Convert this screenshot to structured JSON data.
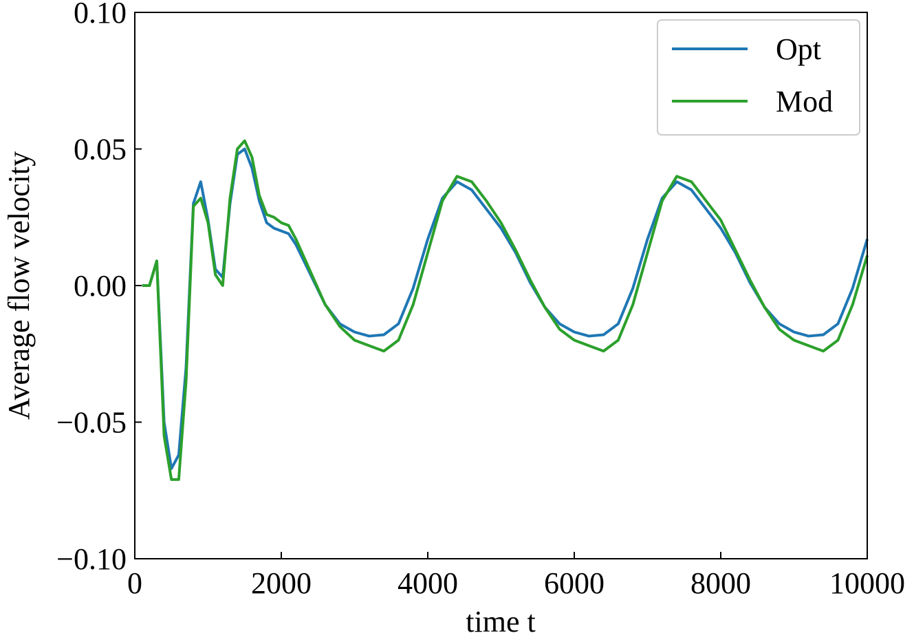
{
  "chart_data": {
    "type": "line",
    "xlabel": "time t",
    "ylabel": "Average flow velocity",
    "x": [
      100,
      200,
      300,
      400,
      500,
      600,
      700,
      800,
      900,
      1000,
      1100,
      1200,
      1300,
      1400,
      1500,
      1600,
      1700,
      1800,
      1900,
      2000,
      2100,
      2200,
      2400,
      2600,
      2800,
      3000,
      3200,
      3400,
      3600,
      3800,
      4000,
      4200,
      4400,
      4600,
      4800,
      5000,
      5200,
      5400,
      5600,
      5800,
      6000,
      6200,
      6400,
      6600,
      6800,
      7000,
      7200,
      7400,
      7600,
      7800,
      8000,
      8200,
      8400,
      8600,
      8800,
      9000,
      9200,
      9400,
      9600,
      9800,
      10000
    ],
    "series": [
      {
        "name": "Opt",
        "color": "#1f77b4",
        "values": [
          0,
          0,
          0.009,
          -0.05,
          -0.067,
          -0.062,
          -0.03,
          0.03,
          0.038,
          0.024,
          0.006,
          0.003,
          0.03,
          0.048,
          0.05,
          0.043,
          0.031,
          0.023,
          0.021,
          0.02,
          0.019,
          0.015,
          0.004,
          -0.007,
          -0.014,
          -0.017,
          -0.0185,
          -0.018,
          -0.014,
          -0.001,
          0.017,
          0.032,
          0.038,
          0.035,
          0.028,
          0.021,
          0.012,
          0.001,
          -0.008,
          -0.014,
          -0.017,
          -0.0185,
          -0.018,
          -0.014,
          -0.001,
          0.017,
          0.032,
          0.038,
          0.035,
          0.028,
          0.021,
          0.012,
          0.001,
          -0.008,
          -0.014,
          -0.017,
          -0.0185,
          -0.018,
          -0.014,
          -0.001,
          0.017
        ]
      },
      {
        "name": "Mod",
        "color": "#2ca02c",
        "values": [
          0,
          0,
          0.009,
          -0.055,
          -0.071,
          -0.071,
          -0.035,
          0.029,
          0.032,
          0.023,
          0.004,
          0,
          0.032,
          0.05,
          0.053,
          0.047,
          0.033,
          0.026,
          0.025,
          0.023,
          0.022,
          0.017,
          0.005,
          -0.007,
          -0.015,
          -0.02,
          -0.022,
          -0.024,
          -0.02,
          -0.007,
          0.012,
          0.031,
          0.04,
          0.038,
          0.031,
          0.023,
          0.013,
          0.002,
          -0.008,
          -0.016,
          -0.02,
          -0.022,
          -0.024,
          -0.02,
          -0.007,
          0.012,
          0.031,
          0.04,
          0.038,
          0.031,
          0.024,
          0.013,
          0.002,
          -0.008,
          -0.016,
          -0.02,
          -0.022,
          -0.024,
          -0.02,
          -0.007,
          0.011
        ]
      }
    ],
    "xlim": [
      0,
      10000
    ],
    "xticks": [
      0,
      2000,
      4000,
      6000,
      8000,
      10000
    ],
    "ylim": [
      -0.1,
      0.1
    ],
    "yticks": [
      {
        "value": -0.1,
        "label": "−0.10"
      },
      {
        "value": -0.05,
        "label": "−0.05"
      },
      {
        "value": 0,
        "label": "0.00"
      },
      {
        "value": 0.05,
        "label": "0.05"
      },
      {
        "value": 0.1,
        "label": "0.10"
      }
    ],
    "legend": "upper right",
    "grid": false
  }
}
